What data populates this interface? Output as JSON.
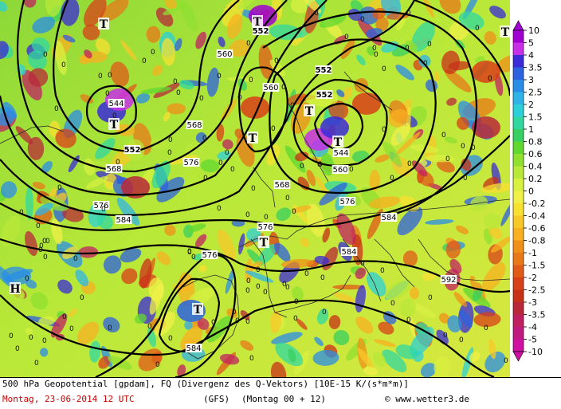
{
  "map": {
    "contour_labels": [
      "544",
      "544",
      "552",
      "552",
      "552",
      "552",
      "560",
      "560",
      "560",
      "568",
      "568",
      "568",
      "576",
      "576",
      "576",
      "576",
      "576",
      "584",
      "584",
      "584",
      "584",
      "592"
    ],
    "field_zero_label": "0",
    "low_marker": "T",
    "high_marker": "H"
  },
  "legend": {
    "levels": [
      "10",
      "5",
      "4",
      "3.5",
      "3",
      "2.5",
      "2",
      "1.5",
      "1",
      "0.8",
      "0.6",
      "0.4",
      "0.2",
      "0",
      "-0.2",
      "-0.4",
      "-0.6",
      "-0.8",
      "-1",
      "-1.5",
      "-2",
      "-2.5",
      "-3",
      "-3.5",
      "-4",
      "-5",
      "-10"
    ],
    "colors": [
      "#a000d0",
      "#c830e8",
      "#3a2ad8",
      "#2c62e0",
      "#2a8ee8",
      "#2fb4e8",
      "#2bd0d8",
      "#30d8a0",
      "#38d060",
      "#60d830",
      "#90e030",
      "#b8e838",
      "#d8f040",
      "#f0f048",
      "#f8e030",
      "#f8c828",
      "#f8b020",
      "#f09018",
      "#e87818",
      "#e05a18",
      "#d84018",
      "#c83018",
      "#b82838",
      "#c02060",
      "#c01a80",
      "#d010a0"
    ]
  },
  "footer": {
    "line1": "500 hPa Geopotential [gpdam], FQ (Divergenz des Q-Vektors) [10E-15 K/(s*m*m)]",
    "date": "Montag, 23-06-2014  12 UTC",
    "model": "(GFS)",
    "run": "(Montag 00 + 12)",
    "credit": "© www.wetter3.de"
  }
}
